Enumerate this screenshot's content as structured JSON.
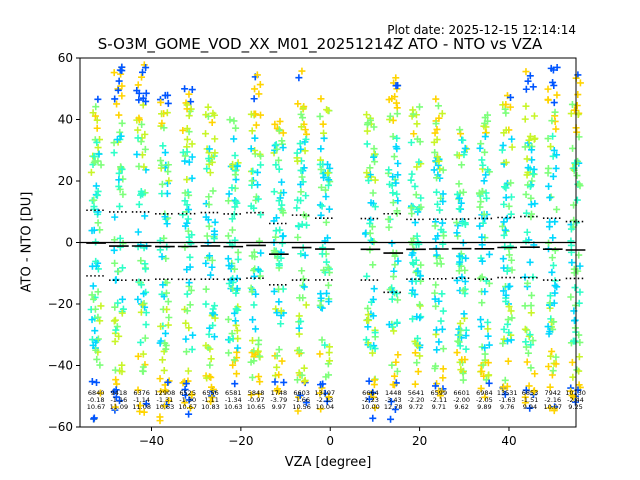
{
  "header": {
    "plot_date": "Plot date: 2025-12-15 12:14:14",
    "title": "S-O3M_GOME_VOD_XX_M01_20251214Z ATO - NTO vs VZA"
  },
  "colors": {
    "scatter": [
      "#ffd400",
      "#c8f528",
      "#7dff7a",
      "#2effc8",
      "#00d8ff",
      "#0055ff",
      "#0000b8"
    ],
    "mean_line": "#000000",
    "sigma_line": "#000000"
  },
  "chart_data": {
    "type": "scatter",
    "title": "S-O3M_GOME_VOD_XX_M01_20251214Z ATO - NTO vs VZA",
    "xlabel": "VZA [degree]",
    "ylabel": "ATO - NTO [DU]",
    "xlim": [
      -56,
      55
    ],
    "ylim": [
      -60,
      60
    ],
    "xticks": [
      -40,
      -20,
      0,
      20,
      40
    ],
    "yticks": [
      -60,
      -40,
      -20,
      0,
      20,
      40,
      60
    ],
    "zero_line": 0,
    "bins": [
      {
        "x": -52.4,
        "count": "6840",
        "mean": "-0.18",
        "std": "10.67",
        "ymin": -58,
        "ymax": 47
      },
      {
        "x": -47.3,
        "count": "9418",
        "mean": "-1.16",
        "std": "11.09",
        "ymin": -55,
        "ymax": 58
      },
      {
        "x": -42.2,
        "count": "6376",
        "mean": "-1.14",
        "std": "11.08",
        "ymin": -56,
        "ymax": 58
      },
      {
        "x": -37.0,
        "count": "12908",
        "mean": "-1.31",
        "std": "10.63",
        "ymin": -58,
        "ymax": 55
      },
      {
        "x": -31.9,
        "count": "6525",
        "mean": "-1.30",
        "std": "10.67",
        "ymin": -58,
        "ymax": 53
      },
      {
        "x": -26.8,
        "count": "6556",
        "mean": "-1.11",
        "std": "10.83",
        "ymin": -52,
        "ymax": 47
      },
      {
        "x": -21.7,
        "count": "6581",
        "mean": "-1.34",
        "std": "10.63",
        "ymin": -48,
        "ymax": 40
      },
      {
        "x": -16.6,
        "count": "5848",
        "mean": "-0.97",
        "std": "10.65",
        "ymin": -50,
        "ymax": 55
      },
      {
        "x": -11.5,
        "count": "1748",
        "mean": "-3.79",
        "std": "9.97",
        "ymin": -50,
        "ymax": 42
      },
      {
        "x": -6.4,
        "count": "6603",
        "mean": "-1.66",
        "std": "10.56",
        "ymin": -55,
        "ymax": 56
      },
      {
        "x": -1.2,
        "count": "13197",
        "mean": "-2.13",
        "std": "10.04",
        "ymin": -55,
        "ymax": 48
      },
      {
        "x": 9.0,
        "count": "6664",
        "mean": "-2.23",
        "std": "10.00",
        "ymin": -58,
        "ymax": 42
      },
      {
        "x": 14.1,
        "count": "1448",
        "mean": "-3.43",
        "std": "12.78",
        "ymin": -58,
        "ymax": 56
      },
      {
        "x": 19.2,
        "count": "5641",
        "mean": "-2.20",
        "std": "9.72",
        "ymin": -48,
        "ymax": 45
      },
      {
        "x": 24.3,
        "count": "6599",
        "mean": "-2.11",
        "std": "9.71",
        "ymin": -50,
        "ymax": 47
      },
      {
        "x": 29.4,
        "count": "6601",
        "mean": "-2.00",
        "std": "9.62",
        "ymin": -45,
        "ymax": 40
      },
      {
        "x": 34.5,
        "count": "6984",
        "mean": "-2.05",
        "std": "9.89",
        "ymin": -55,
        "ymax": 42
      },
      {
        "x": 39.6,
        "count": "13531",
        "mean": "-1.63",
        "std": "9.76",
        "ymin": -52,
        "ymax": 50
      },
      {
        "x": 44.7,
        "count": "6853",
        "mean": "-1.51",
        "std": "9.94",
        "ymin": -55,
        "ymax": 56
      },
      {
        "x": 49.8,
        "count": "7942",
        "mean": "-2.16",
        "std": "10.07",
        "ymin": -55,
        "ymax": 57
      },
      {
        "x": 54.9,
        "count": "10130",
        "mean": "-2.44",
        "std": "9.25",
        "ymin": -52,
        "ymax": 57
      }
    ]
  }
}
